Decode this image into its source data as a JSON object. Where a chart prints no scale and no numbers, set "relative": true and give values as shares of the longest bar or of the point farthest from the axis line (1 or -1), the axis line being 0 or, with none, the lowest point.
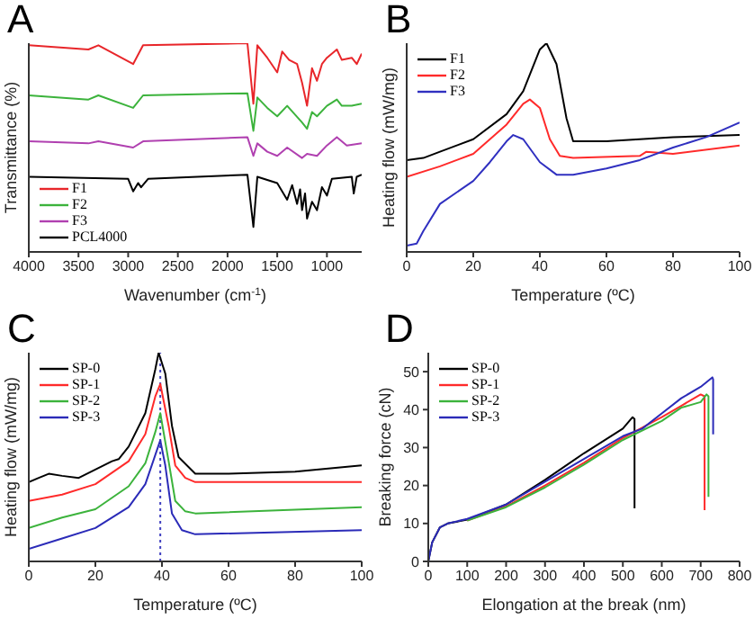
{
  "chart_data": [
    {
      "type": "line",
      "title": "A",
      "xlabel": "Wavenumber (cm$^{-1}$)",
      "ylabel": "Transmittance (%)",
      "relative": true,
      "xlim": [
        4000,
        650
      ],
      "xticks": [
        4000,
        3500,
        3000,
        2500,
        2000,
        1500,
        1000
      ],
      "legend": "bottom left",
      "series": [
        {
          "name": "F1",
          "color": "#e8262a",
          "x": [
            4000,
            3400,
            3300,
            2950,
            2850,
            1800,
            1740,
            1700,
            1600,
            1500,
            1450,
            1380,
            1300,
            1250,
            1200,
            1150,
            1100,
            1050,
            1000,
            900,
            850,
            750,
            700,
            650
          ],
          "values": [
            0.99,
            0.97,
            0.99,
            0.9,
            0.99,
            1.0,
            0.71,
            0.99,
            0.93,
            0.86,
            0.96,
            0.92,
            0.9,
            0.81,
            0.7,
            0.88,
            0.82,
            0.9,
            0.93,
            0.97,
            0.92,
            0.93,
            0.9,
            0.95
          ]
        },
        {
          "name": "F2",
          "color": "#3cb33c",
          "x": [
            4000,
            3400,
            3300,
            2950,
            2850,
            1800,
            1740,
            1700,
            1600,
            1500,
            1400,
            1250,
            1200,
            1150,
            1100,
            1000,
            900,
            850,
            750,
            650
          ],
          "values": [
            0.75,
            0.73,
            0.75,
            0.69,
            0.75,
            0.76,
            0.58,
            0.74,
            0.69,
            0.65,
            0.7,
            0.62,
            0.59,
            0.67,
            0.65,
            0.7,
            0.73,
            0.7,
            0.7,
            0.71
          ]
        },
        {
          "name": "F3",
          "color": "#b040b0",
          "x": [
            4000,
            3400,
            3300,
            2950,
            2850,
            1800,
            1740,
            1700,
            1600,
            1500,
            1400,
            1250,
            1200,
            1100,
            1000,
            900,
            800,
            650
          ],
          "values": [
            0.53,
            0.52,
            0.53,
            0.5,
            0.53,
            0.55,
            0.46,
            0.52,
            0.48,
            0.46,
            0.5,
            0.45,
            0.47,
            0.46,
            0.51,
            0.55,
            0.51,
            0.52
          ]
        },
        {
          "name": "PCL4000",
          "color": "#000000",
          "x": [
            4000,
            3000,
            2950,
            2900,
            2870,
            2800,
            1800,
            1740,
            1700,
            1500,
            1400,
            1350,
            1300,
            1270,
            1250,
            1220,
            1200,
            1150,
            1100,
            1050,
            1000,
            950,
            750,
            730,
            700,
            650
          ],
          "values": [
            0.36,
            0.35,
            0.29,
            0.33,
            0.31,
            0.35,
            0.37,
            0.12,
            0.36,
            0.33,
            0.25,
            0.32,
            0.23,
            0.3,
            0.2,
            0.28,
            0.16,
            0.24,
            0.2,
            0.31,
            0.27,
            0.35,
            0.36,
            0.28,
            0.36,
            0.37
          ]
        }
      ]
    },
    {
      "type": "line",
      "title": "B",
      "xlabel": "Temperature (ºC)",
      "ylabel": "Heating flow (mW/mg)",
      "relative": true,
      "xlim": [
        0,
        100
      ],
      "xticks": [
        0,
        20,
        40,
        60,
        80,
        100
      ],
      "legend": "top left",
      "series": [
        {
          "name": "F1",
          "color": "#000000",
          "x": [
            0,
            5,
            10,
            20,
            30,
            35,
            40,
            42,
            45,
            48,
            50,
            60,
            80,
            100
          ],
          "values": [
            0.44,
            0.45,
            0.48,
            0.54,
            0.66,
            0.77,
            0.97,
            1.0,
            0.9,
            0.64,
            0.53,
            0.53,
            0.55,
            0.56
          ]
        },
        {
          "name": "F2",
          "color": "#ff2a2a",
          "x": [
            0,
            10,
            20,
            30,
            35,
            37,
            40,
            43,
            46,
            50,
            70,
            72,
            80,
            100
          ],
          "values": [
            0.36,
            0.41,
            0.47,
            0.61,
            0.71,
            0.73,
            0.69,
            0.54,
            0.46,
            0.45,
            0.46,
            0.48,
            0.47,
            0.51
          ]
        },
        {
          "name": "F3",
          "color": "#3030c0",
          "x": [
            0,
            3,
            5,
            10,
            20,
            25,
            30,
            32,
            35,
            40,
            45,
            50,
            60,
            70,
            80,
            90,
            100
          ],
          "values": [
            0.03,
            0.04,
            0.1,
            0.23,
            0.34,
            0.43,
            0.53,
            0.56,
            0.54,
            0.43,
            0.37,
            0.37,
            0.4,
            0.44,
            0.5,
            0.55,
            0.62
          ]
        }
      ]
    },
    {
      "type": "line",
      "title": "C",
      "xlabel": "Temperature (ºC)",
      "ylabel": "Heating flow (mW/mg)",
      "relative": true,
      "xlim": [
        0,
        100
      ],
      "xticks": [
        0,
        20,
        40,
        60,
        80,
        100
      ],
      "legend": "top left",
      "ref_lines": [
        {
          "axis": "x",
          "value": 39.5,
          "color": "#4040c0",
          "line_style": "dotted"
        }
      ],
      "series": [
        {
          "name": "SP-0",
          "color": "#000000",
          "x": [
            0,
            3,
            6,
            10,
            15,
            20,
            25,
            27,
            30,
            35,
            38,
            39,
            41,
            43,
            45,
            50,
            60,
            80,
            100
          ],
          "values": [
            0.38,
            0.4,
            0.42,
            0.41,
            0.4,
            0.44,
            0.48,
            0.49,
            0.55,
            0.71,
            0.92,
            1.0,
            0.9,
            0.65,
            0.5,
            0.42,
            0.42,
            0.43,
            0.46
          ]
        },
        {
          "name": "SP-1",
          "color": "#ff2a2a",
          "x": [
            0,
            10,
            20,
            30,
            35,
            38,
            39.5,
            42,
            44,
            47,
            50,
            100
          ],
          "values": [
            0.29,
            0.32,
            0.37,
            0.48,
            0.61,
            0.79,
            0.85,
            0.65,
            0.46,
            0.4,
            0.38,
            0.38
          ]
        },
        {
          "name": "SP-2",
          "color": "#3cb33c",
          "x": [
            0,
            10,
            20,
            30,
            35,
            38,
            39.5,
            42,
            44,
            47,
            50,
            100
          ],
          "values": [
            0.16,
            0.21,
            0.25,
            0.36,
            0.47,
            0.62,
            0.71,
            0.48,
            0.29,
            0.24,
            0.23,
            0.26
          ]
        },
        {
          "name": "SP-3",
          "color": "#2b2bb8",
          "x": [
            0,
            10,
            20,
            30,
            35,
            38,
            39.5,
            41,
            43,
            46,
            50,
            100
          ],
          "values": [
            0.06,
            0.11,
            0.16,
            0.26,
            0.37,
            0.51,
            0.58,
            0.46,
            0.23,
            0.15,
            0.13,
            0.15
          ]
        }
      ]
    },
    {
      "type": "line",
      "title": "D",
      "xlabel": "Elongation at the break (nm)",
      "ylabel": "Breaking force (cN)",
      "xlim": [
        0,
        800
      ],
      "xticks": [
        0,
        100,
        200,
        300,
        400,
        500,
        600,
        700,
        800
      ],
      "ylim": [
        0,
        55
      ],
      "yticks": [
        0,
        10,
        20,
        30,
        40,
        50
      ],
      "legend": "top left",
      "series": [
        {
          "name": "SP-0",
          "color": "#000000",
          "x": [
            0,
            10,
            30,
            50,
            100,
            200,
            300,
            400,
            500,
            525,
            530,
            530
          ],
          "values": [
            0,
            5,
            9,
            10,
            11,
            15,
            21.5,
            28.5,
            35,
            38,
            37.5,
            14
          ]
        },
        {
          "name": "SP-1",
          "color": "#ff2a2a",
          "x": [
            100,
            200,
            300,
            400,
            500,
            600,
            650,
            700,
            710,
            710
          ],
          "values": [
            10.8,
            14.5,
            20,
            26,
            32.5,
            38,
            41,
            44,
            43.5,
            13.5
          ]
        },
        {
          "name": "SP-2",
          "color": "#3cb33c",
          "x": [
            100,
            200,
            300,
            400,
            500,
            600,
            650,
            700,
            715,
            720,
            720
          ],
          "values": [
            10.8,
            14.3,
            19.5,
            25.5,
            32,
            37,
            40.5,
            42,
            44,
            43.5,
            17
          ]
        },
        {
          "name": "SP-3",
          "color": "#2b2bb8",
          "x": [
            0,
            10,
            30,
            50,
            100,
            200,
            300,
            400,
            500,
            550,
            600,
            650,
            700,
            730,
            732,
            732
          ],
          "values": [
            0,
            5,
            9,
            10,
            11.2,
            15,
            21,
            27,
            33,
            35,
            39,
            43,
            46,
            48.5,
            48,
            33.5
          ]
        }
      ]
    }
  ]
}
